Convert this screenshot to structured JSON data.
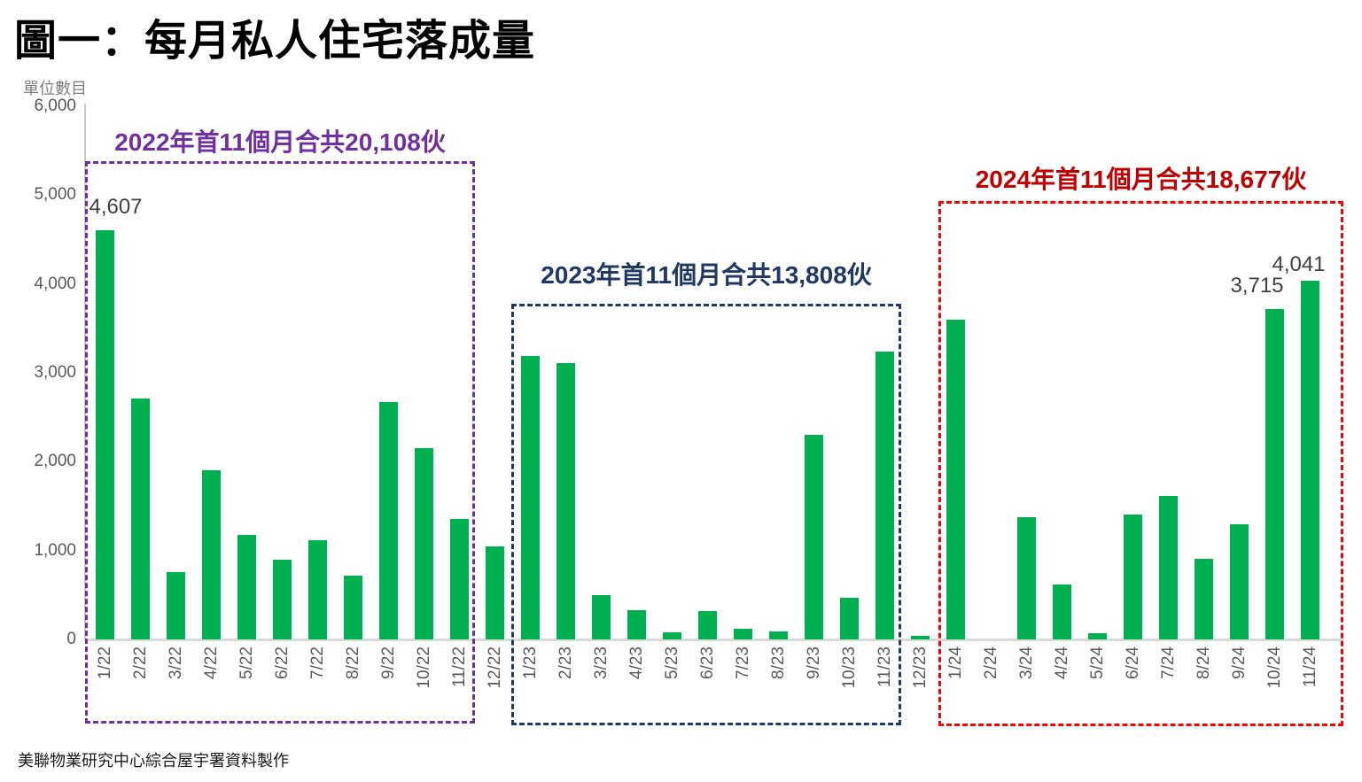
{
  "title": "圖一：每月私人住宅落成量",
  "y_axis": {
    "label": "單位數目",
    "ticks": [
      "0",
      "1,000",
      "2,000",
      "3,000",
      "4,000",
      "5,000",
      "6,000"
    ]
  },
  "annotations": [
    {
      "id": "box-2022",
      "label": "2022年首11個月合共20,108伙",
      "color": "#7030a0",
      "border_color": "#7030a0"
    },
    {
      "id": "box-2023",
      "label": "2023年首11個月合共13,808伙",
      "color": "#1f3864",
      "border_color": "#1f3864"
    },
    {
      "id": "box-2024",
      "label": "2024年首11個月合共18,677伙",
      "color": "#c00000",
      "border_color": "#ff0000"
    }
  ],
  "point_labels": [
    {
      "bar_index": 0,
      "text": "4,607"
    },
    {
      "bar_index": 33,
      "text": "3,715"
    },
    {
      "bar_index": 34,
      "text": "4,041"
    }
  ],
  "source_note": "美聯物業研究中心綜合屋宇署資料製作",
  "colors": {
    "bar": "#00b050",
    "axis_line": "#c9c9c9",
    "baseline": "#d9d9d9",
    "tick_text": "#595959",
    "data_label": "#404040"
  },
  "chart_data": {
    "type": "bar",
    "title": "圖一：每月私人住宅落成量",
    "xlabel": "",
    "ylabel": "單位數目",
    "ylim": [
      0,
      6000
    ],
    "ytick_step": 1000,
    "grid": false,
    "legend": "none",
    "categories": [
      "1/22",
      "2/22",
      "3/22",
      "4/22",
      "5/22",
      "6/22",
      "7/22",
      "8/22",
      "9/22",
      "10/22",
      "11/22",
      "12/22",
      "1/23",
      "2/23",
      "3/23",
      "4/23",
      "5/23",
      "6/23",
      "7/23",
      "8/23",
      "9/23",
      "10/23",
      "11/23",
      "12/23",
      "1/24",
      "2/24",
      "3/24",
      "4/24",
      "5/24",
      "6/24",
      "7/24",
      "8/24",
      "9/24",
      "10/24",
      "11/24"
    ],
    "values": [
      4607,
      2710,
      760,
      1900,
      1180,
      900,
      1120,
      715,
      2675,
      2155,
      1355,
      1050,
      3190,
      3110,
      500,
      330,
      80,
      320,
      120,
      90,
      2300,
      470,
      3240,
      40,
      3600,
      0,
      1380,
      620,
      70,
      1410,
      1615,
      910,
      1300,
      3715,
      4041
    ],
    "labeled_points": [
      {
        "category": "1/22",
        "value": 4607
      },
      {
        "category": "10/24",
        "value": 3715
      },
      {
        "category": "11/24",
        "value": 4041
      }
    ],
    "group_annotations": [
      {
        "months": "1/22-11/22",
        "total": 20108,
        "label": "2022年首11個月合共20,108伙"
      },
      {
        "months": "1/23-11/23",
        "total": 13808,
        "label": "2023年首11個月合共13,808伙"
      },
      {
        "months": "1/24-11/24",
        "total": 18677,
        "label": "2024年首11個月合共18,677伙"
      }
    ]
  }
}
